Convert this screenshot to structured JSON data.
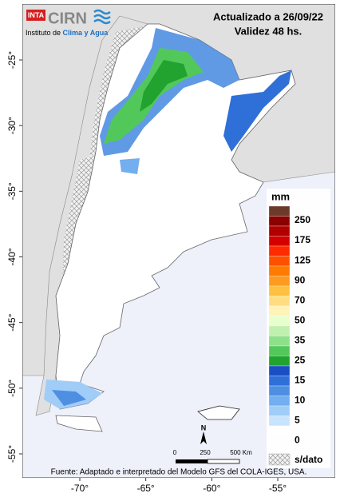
{
  "header": {
    "logo_inta": "INTA",
    "logo_cirn": "CIRN",
    "institute": "Instituto de ",
    "institute_highlight": "Clima y Agua",
    "updated": "Actualizado a 26/09/22",
    "validity": "Validez 48 hs."
  },
  "map": {
    "lat_ticks": [
      {
        "value": -25,
        "label": "-25°"
      },
      {
        "value": -30,
        "label": "-30°"
      },
      {
        "value": -35,
        "label": "-35°"
      },
      {
        "value": -40,
        "label": "-40°"
      },
      {
        "value": -45,
        "label": "-45°"
      },
      {
        "value": -50,
        "label": "-50°"
      },
      {
        "value": -55,
        "label": "-55°"
      }
    ],
    "lon_ticks": [
      {
        "value": -70,
        "label": "-70°"
      },
      {
        "value": -65,
        "label": "-65°"
      },
      {
        "value": -60,
        "label": "-60°"
      },
      {
        "value": -55,
        "label": "-55°"
      }
    ]
  },
  "legend": {
    "title": "mm",
    "colors": [
      "#6b3a2a",
      "#8b0000",
      "#b00000",
      "#d40000",
      "#ff2a00",
      "#ff5000",
      "#ff7a00",
      "#ff9a20",
      "#ffc040",
      "#ffdd80",
      "#fff3b8",
      "#e6ffcc",
      "#c0f0b0",
      "#8ee08a",
      "#52c85a",
      "#22a22e",
      "#1a4fc4",
      "#2f6fd8",
      "#4f8fe2",
      "#72aef0",
      "#a0ccf8",
      "#c8e4ff",
      "#ffffff"
    ],
    "labels": [
      "250",
      "175",
      "125",
      "90",
      "70",
      "50",
      "35",
      "25",
      "15",
      "10",
      "5",
      "0"
    ],
    "no_data": "s/dato"
  },
  "scale": {
    "north": "N",
    "labels": [
      "0",
      "250",
      "500 Km"
    ]
  },
  "footer": "Fuente: Adaptado e interpretado del Modelo GFS del COLA-IGES, USA."
}
